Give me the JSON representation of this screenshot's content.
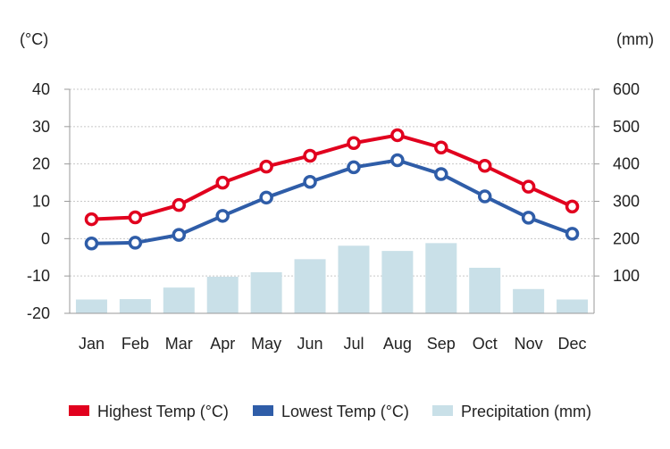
{
  "chart_data": {
    "type": "line",
    "title": "",
    "categories": [
      "Jan",
      "Feb",
      "Mar",
      "Apr",
      "May",
      "Jun",
      "Jul",
      "Aug",
      "Sep",
      "Oct",
      "Nov",
      "Dec"
    ],
    "y_left": {
      "unit": "(°C)",
      "range": [
        -20,
        40
      ],
      "ticks": [
        40,
        30,
        20,
        10,
        0,
        -10,
        -20
      ]
    },
    "y_right": {
      "unit": "(mm)",
      "range": [
        0,
        600
      ],
      "ticks": [
        600,
        500,
        400,
        300,
        200,
        100
      ]
    },
    "grid": true,
    "legend_position": "bottom",
    "series": [
      {
        "name": "Highest Temp (°C)",
        "type": "line",
        "axis": "left",
        "color": "#e1001e",
        "values": [
          5.2,
          5.7,
          9.0,
          15.0,
          19.3,
          22.2,
          25.6,
          27.7,
          24.4,
          19.5,
          13.9,
          8.6
        ]
      },
      {
        "name": "Lowest Temp (°C)",
        "type": "line",
        "axis": "left",
        "color": "#2f5da8",
        "values": [
          -1.3,
          -1.1,
          1.0,
          6.1,
          11.0,
          15.2,
          19.1,
          21.0,
          17.3,
          11.3,
          5.6,
          1.3
        ]
      },
      {
        "name": "Precipitation (mm)",
        "type": "bar",
        "axis": "right",
        "color": "#c9e0e8",
        "values": [
          37,
          38,
          69,
          98,
          110,
          145,
          181,
          167,
          188,
          122,
          65,
          37
        ]
      }
    ]
  }
}
